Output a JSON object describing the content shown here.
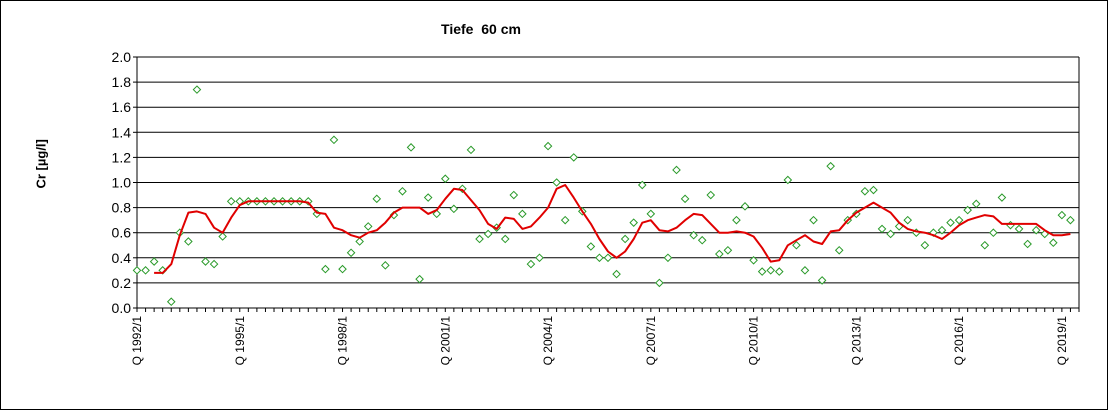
{
  "chart_data": {
    "type": "line",
    "title": "Tiefe  60 cm",
    "ylabel": "Cr [µg/l]",
    "xlabel": "",
    "ylim": [
      0,
      2
    ],
    "yticks": [
      "0.0",
      "0.2",
      "0.4",
      "0.6",
      "0.8",
      "1.0",
      "1.2",
      "1.4",
      "1.6",
      "1.8",
      "2.0"
    ],
    "grid": "horizontal",
    "legend": "none",
    "x_start": "1992/1",
    "x_end": "2019/4",
    "x_tick_labels": [
      {
        "label": "Q 1992/1",
        "t": 0
      },
      {
        "label": "Q 1995/1",
        "t": 12
      },
      {
        "label": "Q 1998/1",
        "t": 24
      },
      {
        "label": "Q 2001/1",
        "t": 36
      },
      {
        "label": "Q 2004/1",
        "t": 48
      },
      {
        "label": "Q 2007/1",
        "t": 60
      },
      {
        "label": "Q 2010/1",
        "t": 72
      },
      {
        "label": "Q 2013/1",
        "t": 84
      },
      {
        "label": "Q 2016/1",
        "t": 96
      },
      {
        "label": "Q 2019/1",
        "t": 108
      }
    ],
    "series": [
      {
        "kind": "scatter",
        "color": "#2a9a2a",
        "x": [
          0,
          1,
          2,
          3,
          4,
          5,
          6,
          7,
          8,
          9,
          10,
          11,
          12,
          13,
          14,
          15,
          16,
          17,
          18,
          19,
          20,
          21,
          22,
          23,
          24,
          25,
          26,
          27,
          28,
          29,
          30,
          31,
          32,
          33,
          34,
          35,
          36,
          37,
          38,
          39,
          40,
          41,
          42,
          43,
          44,
          45,
          46,
          47,
          48,
          49,
          50,
          51,
          52,
          53,
          54,
          55,
          56,
          57,
          58,
          59,
          60,
          61,
          62,
          63,
          64,
          65,
          66,
          67,
          68,
          69,
          70,
          71,
          72,
          73,
          74,
          75,
          76,
          77,
          78,
          79,
          80,
          81,
          82,
          83,
          84,
          85,
          86,
          87,
          88,
          89,
          90,
          91,
          92,
          93,
          94,
          95,
          96,
          97,
          98,
          99,
          100,
          101,
          102,
          103,
          104,
          105,
          106,
          107,
          108,
          109
        ],
        "y": [
          0.3,
          0.3,
          0.37,
          0.3,
          0.05,
          0.6,
          0.53,
          1.74,
          0.37,
          0.35,
          0.57,
          0.85,
          0.85,
          0.85,
          0.85,
          0.85,
          0.85,
          0.85,
          0.85,
          0.85,
          0.85,
          0.75,
          0.31,
          1.34,
          0.31,
          0.44,
          0.53,
          0.65,
          0.87,
          0.34,
          0.74,
          0.93,
          1.28,
          0.23,
          0.88,
          0.75,
          1.03,
          0.79,
          0.95,
          1.26,
          0.55,
          0.59,
          0.64,
          0.55,
          0.9,
          0.75,
          0.35,
          0.4,
          1.29,
          1.0,
          0.7,
          1.2,
          0.77,
          0.49,
          0.4,
          0.4,
          0.27,
          0.55,
          0.68,
          0.98,
          0.75,
          0.2,
          0.4,
          1.1,
          0.87,
          0.58,
          0.54,
          0.9,
          0.43,
          0.46,
          0.7,
          0.81,
          0.38,
          0.29,
          0.3,
          0.29,
          1.02,
          0.5,
          0.3,
          0.7,
          0.22,
          1.13,
          0.46,
          0.7,
          0.75,
          0.93,
          0.94,
          0.63,
          0.59,
          0.65,
          0.7,
          0.6,
          0.5,
          0.6,
          0.62,
          0.68,
          0.7,
          0.78,
          0.83,
          0.5,
          0.6,
          0.88,
          0.66,
          0.63,
          0.51,
          0.62,
          0.59,
          0.52,
          0.74,
          0.7
        ]
      },
      {
        "kind": "line",
        "color": "#e00000",
        "x": [
          2,
          3,
          4,
          5,
          6,
          7,
          8,
          9,
          10,
          11,
          12,
          13,
          14,
          15,
          16,
          17,
          18,
          19,
          20,
          21,
          22,
          23,
          24,
          25,
          26,
          27,
          28,
          29,
          30,
          31,
          32,
          33,
          34,
          35,
          36,
          37,
          38,
          39,
          40,
          41,
          42,
          43,
          44,
          45,
          46,
          47,
          48,
          49,
          50,
          51,
          52,
          53,
          54,
          55,
          56,
          57,
          58,
          59,
          60,
          61,
          62,
          63,
          64,
          65,
          66,
          67,
          68,
          69,
          70,
          71,
          72,
          73,
          74,
          75,
          76,
          77,
          78,
          79,
          80,
          81,
          82,
          83,
          84,
          85,
          86,
          87,
          88,
          89,
          90,
          91,
          92,
          93,
          94,
          95,
          96,
          97,
          98,
          99,
          100,
          101,
          102,
          103,
          104,
          105,
          106,
          107,
          108,
          109
        ],
        "y": [
          0.28,
          0.28,
          0.35,
          0.58,
          0.76,
          0.77,
          0.75,
          0.64,
          0.6,
          0.72,
          0.82,
          0.85,
          0.85,
          0.85,
          0.85,
          0.85,
          0.85,
          0.85,
          0.84,
          0.76,
          0.75,
          0.64,
          0.62,
          0.58,
          0.56,
          0.6,
          0.62,
          0.68,
          0.76,
          0.8,
          0.8,
          0.8,
          0.75,
          0.78,
          0.87,
          0.95,
          0.94,
          0.86,
          0.78,
          0.67,
          0.63,
          0.72,
          0.71,
          0.63,
          0.65,
          0.72,
          0.8,
          0.95,
          0.98,
          0.88,
          0.77,
          0.67,
          0.55,
          0.45,
          0.4,
          0.45,
          0.55,
          0.68,
          0.7,
          0.62,
          0.61,
          0.64,
          0.7,
          0.75,
          0.74,
          0.67,
          0.6,
          0.6,
          0.61,
          0.6,
          0.57,
          0.48,
          0.37,
          0.38,
          0.5,
          0.54,
          0.58,
          0.53,
          0.51,
          0.61,
          0.62,
          0.7,
          0.76,
          0.8,
          0.84,
          0.8,
          0.76,
          0.68,
          0.63,
          0.61,
          0.6,
          0.58,
          0.55,
          0.6,
          0.66,
          0.7,
          0.72,
          0.74,
          0.73,
          0.67,
          0.67,
          0.67,
          0.67,
          0.67,
          0.62,
          0.58,
          0.58,
          0.59
        ]
      }
    ]
  }
}
